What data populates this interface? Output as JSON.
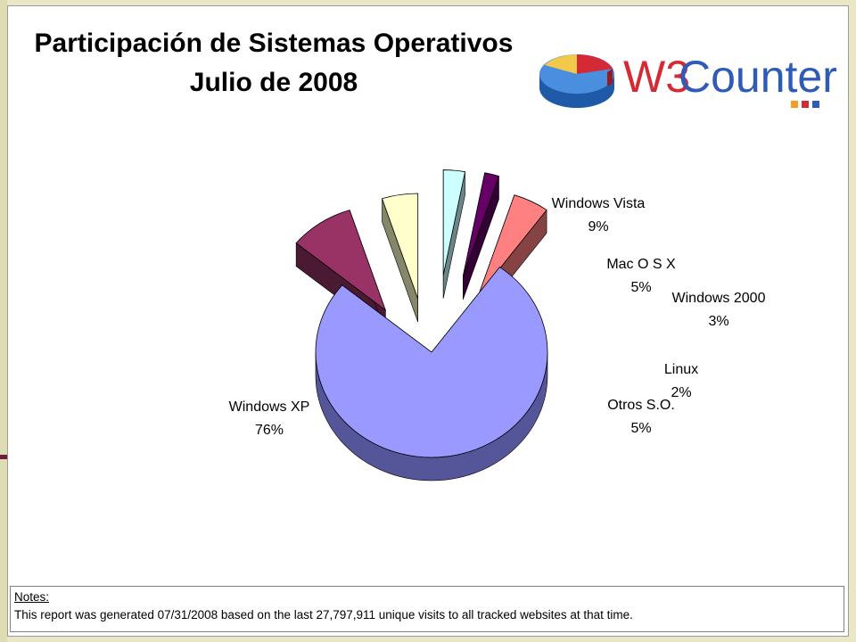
{
  "chart_data": {
    "type": "pie",
    "title": "Participación de Sistemas Operativos",
    "subtitle": "Julio de 2008",
    "slices": [
      {
        "name": "Windows XP",
        "value": 76,
        "label": "76%",
        "color": "#9999ff",
        "side": "#55559a"
      },
      {
        "name": "Windows Vista",
        "value": 9,
        "label": "9%",
        "color": "#993366",
        "side": "#4a1a33"
      },
      {
        "name": "Mac O S X",
        "value": 5,
        "label": "5%",
        "color": "#ffffcc",
        "side": "#86866a"
      },
      {
        "name": "Windows 2000",
        "value": 3,
        "label": "3%",
        "color": "#ccffff",
        "side": "#6a8686"
      },
      {
        "name": "Linux",
        "value": 2,
        "label": "2%",
        "color": "#660066",
        "side": "#330033"
      },
      {
        "name": "Otros S.O.",
        "value": 5,
        "label": "5%",
        "color": "#ff8080",
        "side": "#864343"
      }
    ]
  },
  "logo": {
    "text_w3": "W3",
    "text_counter": "Counter",
    "color_w3": "#d42a35",
    "color_counter": "#2e5bb8"
  },
  "notes": {
    "heading": "Notes:",
    "body": "This report was generated 07/31/2008 based on the last 27,797,911 unique visits to all tracked websites at that time."
  }
}
